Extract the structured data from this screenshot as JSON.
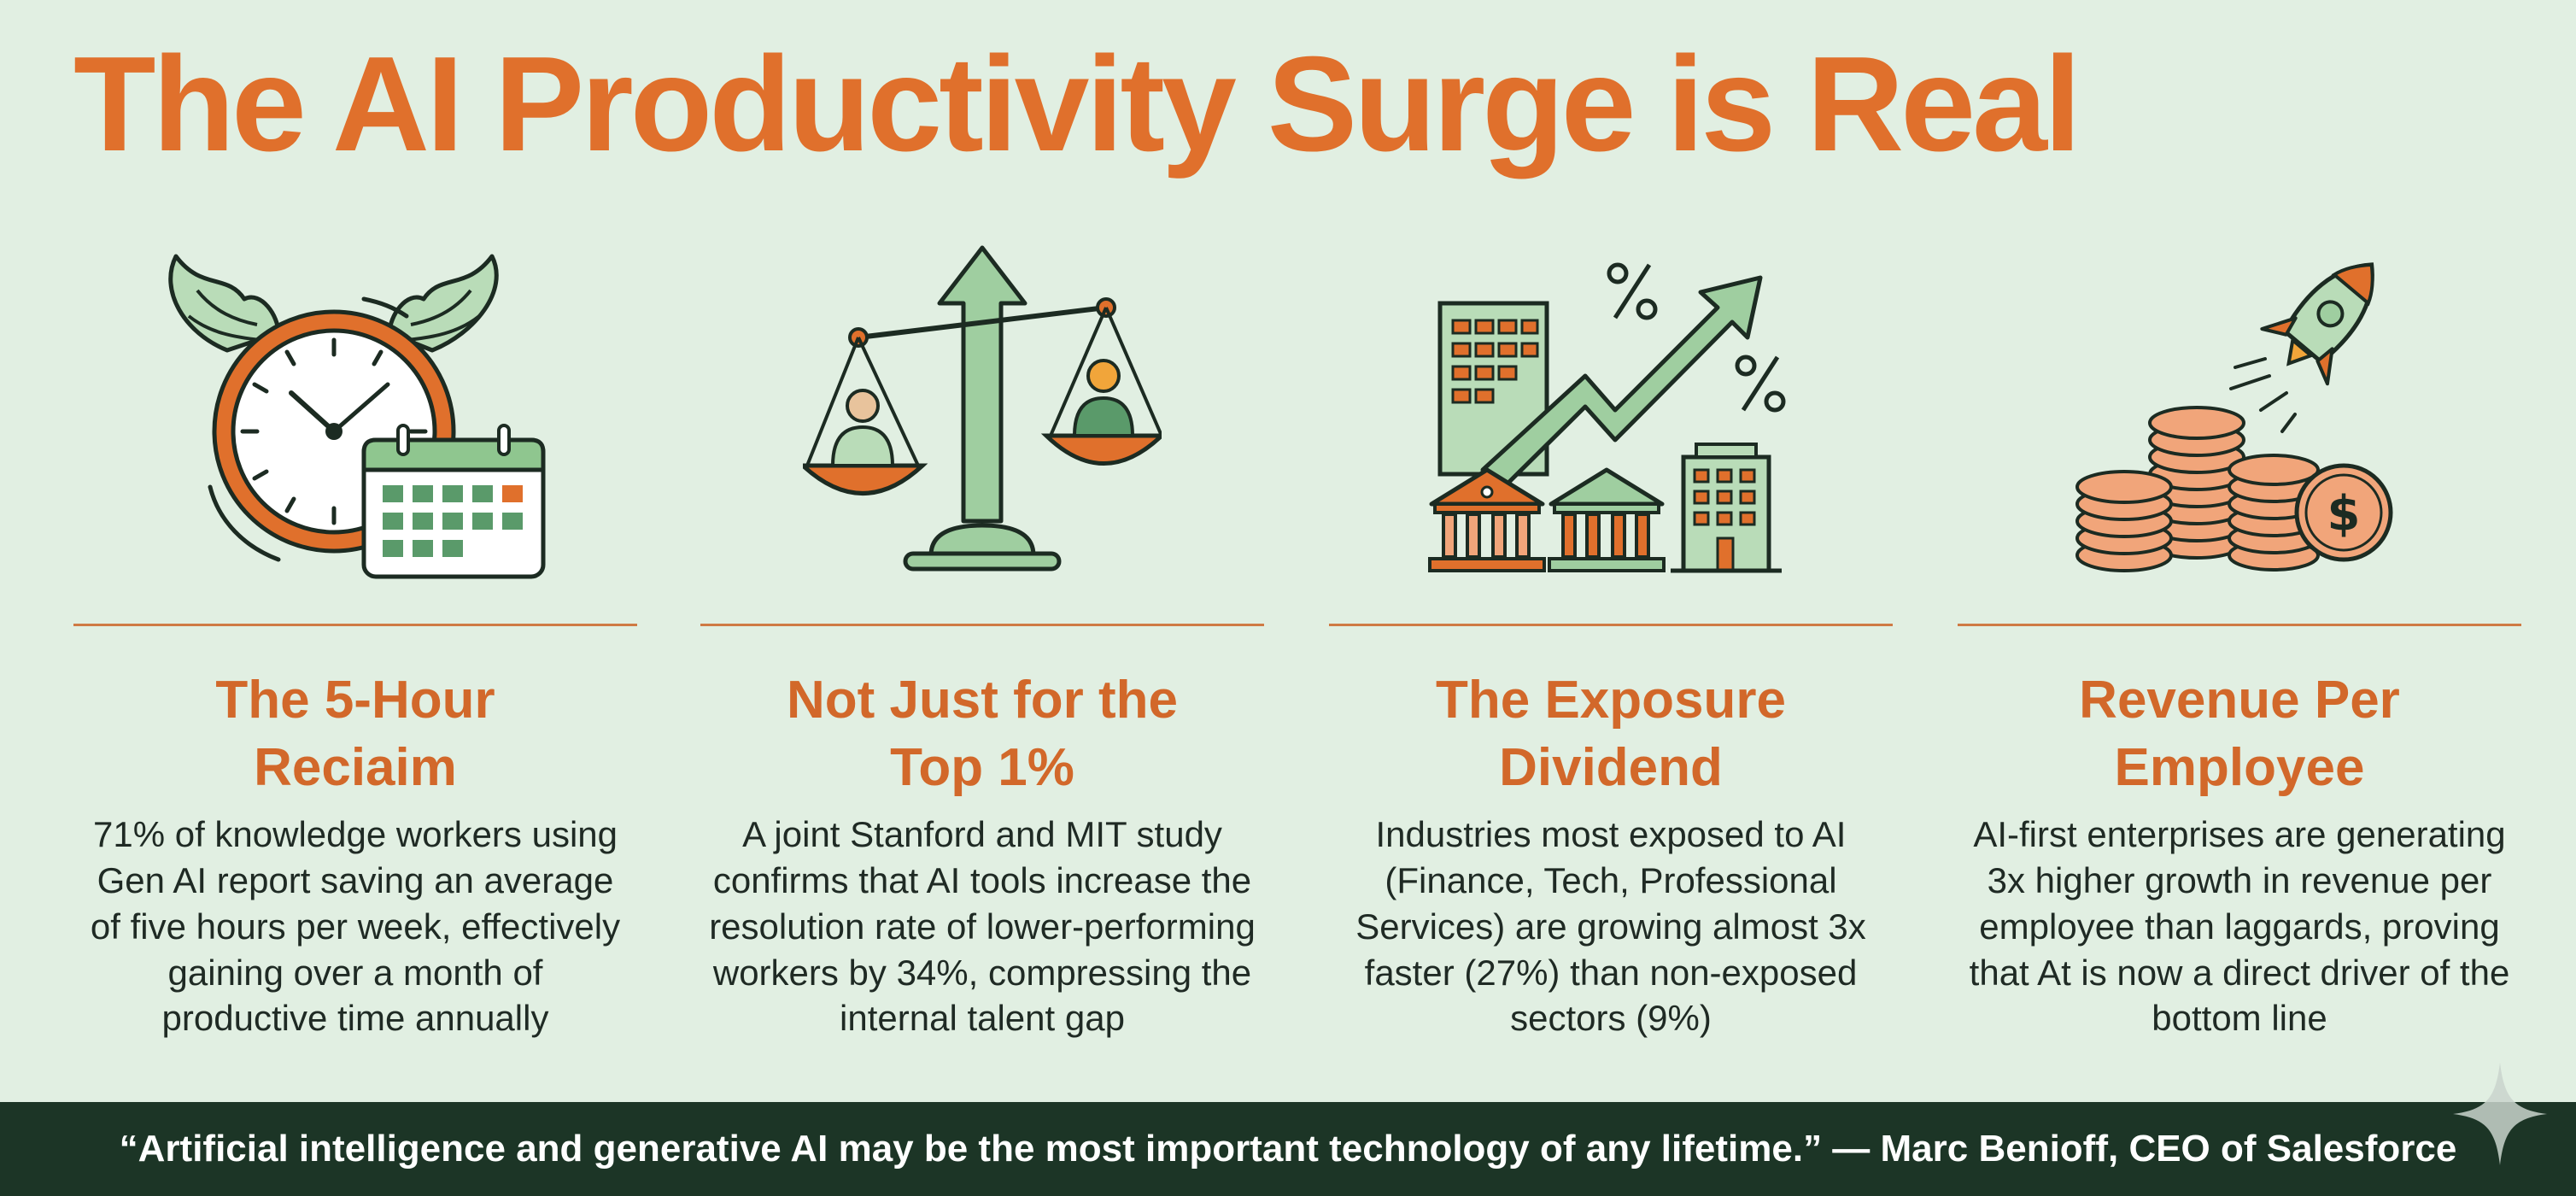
{
  "title": "The AI Productivity Surge is Real",
  "colors": {
    "background": "#e1efe2",
    "accent_orange": "#e0702c",
    "heading_orange": "#d2682a",
    "soft_green": "#9fcea0",
    "footer_green": "#1c3526"
  },
  "columns": [
    {
      "icon": "winged-clock-calendar-icon",
      "heading": "The 5-Hour Reciaim",
      "body": "71% of knowledge workers using Gen AI report saving an average of five hours per week, effectively gaining over a month of productive time annually"
    },
    {
      "icon": "balance-scale-arrow-icon",
      "heading": "Not Just for the Top 1%",
      "body": "A joint Stanford and MIT study confirms that AI tools increase the resolution rate of lower-performing workers by 34%, compressing the internal talent gap"
    },
    {
      "icon": "buildings-growth-arrow-icon",
      "heading": "The Exposure Dividend",
      "body": "Industries most exposed to AI (Finance, Tech, Professional Services) are growing almost 3x faster (27%) than non-exposed sectors (9%)"
    },
    {
      "icon": "rocket-coins-icon",
      "heading": "Revenue Per Employee",
      "body": "AI-first enterprises are generating 3x higher growth in revenue per employee than laggards, proving that At is now a direct driver of the bottom line"
    }
  ],
  "footer": {
    "quote": "“Artificial intelligence and generative AI may be the most important technology of any lifetime.” — Marc Benioff, CEO of Salesforce"
  }
}
